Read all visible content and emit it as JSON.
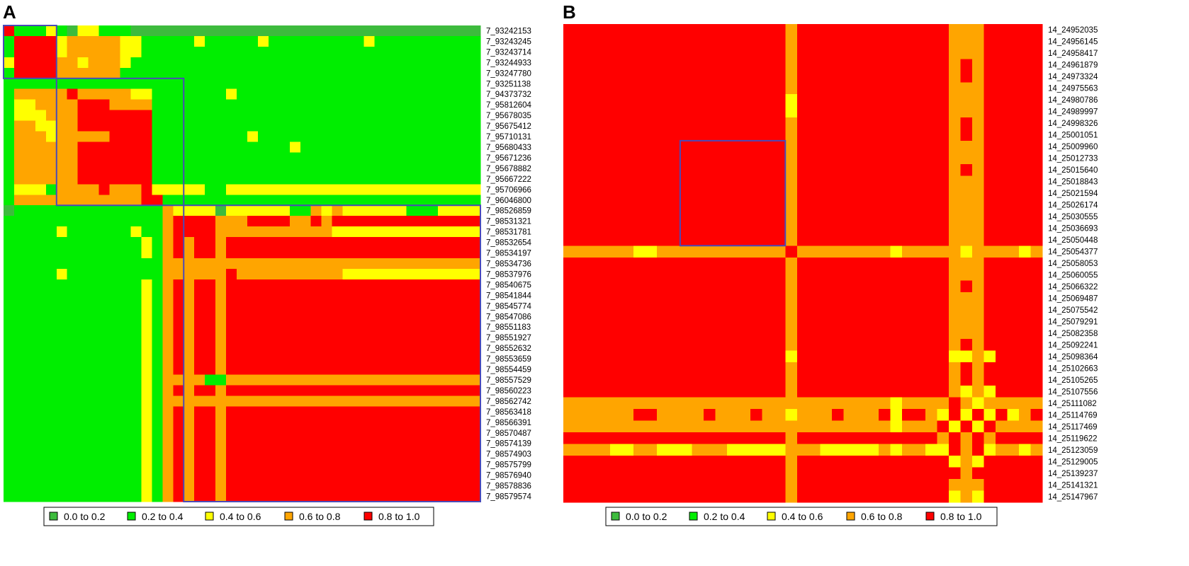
{
  "colors": {
    "0.0 to 0.2": "#3dbb3d",
    "0.2 to 0.4": "#00ee00",
    "0.4 to 0.6": "#ffff00",
    "0.6 to 0.8": "#ffa500",
    "0.8 to 1.0": "#ff0000",
    "block_outline": "#4a4ab8"
  },
  "legend": [
    {
      "label": "0.0 to 0.2",
      "color": "#3dbb3d"
    },
    {
      "label": "0.2 to 0.4",
      "color": "#00ee00"
    },
    {
      "label": "0.4 to 0.6",
      "color": "#ffff00"
    },
    {
      "label": "0.6 to 0.8",
      "color": "#ffa500"
    },
    {
      "label": "0.8 to 1.0",
      "color": "#ff0000"
    }
  ],
  "chart_data": [
    {
      "type": "heatmap",
      "panel": "A",
      "bins": [
        "0.0 to 0.2",
        "0.2 to 0.4",
        "0.4 to 0.6",
        "0.6 to 0.8",
        "0.8 to 1.0"
      ],
      "rows": [
        "7_93242153",
        "7_93243245",
        "7_93243714",
        "7_93244933",
        "7_93247780",
        "7_93251138",
        "7_94373732",
        "7_95812604",
        "7_95678035",
        "7_95675412",
        "7_95710131",
        "7_95680433",
        "7_95671236",
        "7_95678882",
        "7_95667222",
        "7_95706966",
        "7_96046800",
        "7_98526859",
        "7_98531321",
        "7_98531781",
        "7_98532654",
        "7_98534197",
        "7_98534736",
        "7_98537976",
        "7_98540675",
        "7_98541844",
        "7_98545774",
        "7_98547086",
        "7_98551183",
        "7_98551927",
        "7_98552632",
        "7_98553659",
        "7_98554459",
        "7_98557529",
        "7_98560223",
        "7_98562742",
        "7_98563418",
        "7_98566391",
        "7_98570487",
        "7_98574139",
        "7_98574903",
        "7_98575799",
        "7_98576940",
        "7_98578836",
        "7_98579574"
      ],
      "blocks": [
        {
          "from": "7_93242153",
          "to": "7_93247780"
        },
        {
          "from": "7_93251138",
          "to": "7_96046800"
        },
        {
          "from": "7_98526859",
          "to": "7_98579574"
        }
      ],
      "matrix_rows": [
        "RBBBCBACCBBBAAAAAAAAAAAAAAAAAAAAAAAAAAAAAAAAA",
        "BRRRRCDDDDDCCBBBBBCBBBBBCBBBBBBBBBCBBBBBBBBBB",
        "BRRRRCDDDDDCCBBBBBBBBBBBBBBBBBBBBBBBBBBBBBBBB",
        "CRRRRDDCDDDCBBBBBBBBBBBBBBBBBBBBBBBBBBBBBBBBB",
        "BRRRRDDDDDDBBBBBBBBBBBBBBBBBBBBBBBBBBBBBBBBBB",
        "BBBBBBBBBBBBBBBBBBBBBBBBBBBBBBBBBBBBBBBBBBBBB",
        "BDDDDDRDDDDDCCBBBBBBBCBBBBBBBBBBBBBBBBBBBBBBB",
        "BCCDDDDRRRDDDDBBBBBBBBBBBBBBBBBBBBBBBBBBBBBBB",
        "BCCCDDDRRRRRRRBBBBBBBBBBBBBBBBBBBBBBBBBBBBBBB",
        "BDDCCDDRRRRRRRBBBBBBBBBBBBBBBBBBBBBBBBBBBBBBB",
        "BDDDCDDDDDRRRRBBBBBBBBBCBBBBBBBBBBBBBBBBBBBBB",
        "BDDDDDDRRRRRRRBBBBBBBBBBBBBCBBBBBBBBBBBBBBBBB",
        "BDDDDDDRRRRRRRBBBBBBBBBBBBBBBBBBBBBBBBBBBBBBB",
        "BDDDDDDRRRRRRRBBBBBBBBBBBBBBBBBBBBBBBBBBBBBBB",
        "BDDDDDDRRRRRRRBBBBBBBBBBBBBBBBBBBBBBBBBBBBBBB",
        "BCCCBDDDDRDDDRCCCCCBBCCCCCCCCCCCCCCCCCCCCCCCC",
        "BDDDDDDDDDDDDRRBBBBBBBBBBBBBBBBBBBBBBBBBBBBBB",
        "ABBBBBBBBBBBBBBDCCCCACCCCCCBBDCDCCCCCCBBBCCCC",
        "BBBBBBBBBBBBBBBDRRRRDDDRRRRDDRDRRRRRRRRRRRRRR",
        "BBBBBCBBBBBBCBBDRRRRDDDDDDDDDDDCCCCCCCCCCCCCC",
        "BBBBBBBBBBBBBCBDRDRRDRRRRRRRRRRRRRRRRRRRRRRRR",
        "BBBBBBBBBBBBBCBDRDRRDRRRRRRRRRRRRRRRRRRRRRRRR",
        "BBBBBBBBBBBBBBBDDDDDDDDDDDDDDDDDDDDDDDDDDDDDD",
        "BBBBBCBBBBBBBBBDDDDDDRDDDDDDDDDDCCCCCCCCCCCCC",
        "BBBBBBBBBBBBBCBDRDRRDRRRRRRRRRRRRRRRRRRRRRRRR",
        "BBBBBBBBBBBBBCBDRDRRDRRRRRRRRRRRRRRRRRRRRRRRR",
        "BBBBBBBBBBBBBCBDRDRRDRRRRRRRRRRRRRRRRRRRRRRRR",
        "BBBBBBBBBBBBBCBDRDRRDRRRRRRRRRRRRRRRRRRRRRRRR",
        "BBBBBBBBBBBBBCBDRDRRDRRRRRRRRRRRRRRRRRRRRRRRR",
        "BBBBBBBBBBBBBCBDRDRRDRRRRRRRRRRRRRRRRRRRRRRRR",
        "BBBBBBBBBBBBBCBDRDRRDRRRRRRRRRRRRRRRRRRRRRRRR",
        "BBBBBBBBBBBBBCBDRDRRDRRRRRRRRRRRRRRRRRRRRRRRR",
        "BBBBBBBBBBBBBCBDRDRRDRRRRRRRRRRRRRRRRRRRRRRRR",
        "BBBBBBBBBBBBBCBDDDDBBDDDDDDDDDDDDDDDDDDDDDDDD",
        "BBBBBBBBBBBBBCBDRDRRDRRRRRRRRRRRRRRRRRRRRRRRR",
        "BBBBBBBBBBBBBCBDDDDDDDDDDDDDDDDDDDDDDDDDDDDDD",
        "BBBBBBBBBBBBBCBDRDRRDRRRRRRRRRRRRRRRRRRRRRRRR",
        "BBBBBBBBBBBBBCBDRDRRDRRRRRRRRRRRRRRRRRRRRRRRR",
        "BBBBBBBBBBBBBCBDRDRRDRRRRRRRRRRRRRRRRRRRRRRRR",
        "BBBBBBBBBBBBBCBDRDRRDRRRRRRRRRRRRRRRRRRRRRRRR",
        "BBBBBBBBBBBBBCBDRDRRDRRRRRRRRRRRRRRRRRRRRRRRR",
        "BBBBBBBBBBBBBCBDRDRRDRRRRRRRRRRRRRRRRRRRRRRRR",
        "BBBBBBBBBBBBBCBDRDRRDRRRRRRRRRRRRRRRRRRRRRRRR",
        "BBBBBBBBBBBBBCBDRDRRDRRRRRRRRRRRRRRRRRRRRRRRR",
        "BBBBBBBBBBBBBCBDRDRRDRRRRRRRRRRRRRRRRRRRRRRRR"
      ]
    },
    {
      "type": "heatmap",
      "panel": "B",
      "bins": [
        "0.0 to 0.2",
        "0.2 to 0.4",
        "0.4 to 0.6",
        "0.6 to 0.8",
        "0.8 to 1.0"
      ],
      "rows": [
        "14_24952035",
        "14_24956145",
        "14_24958417",
        "14_24961879",
        "14_24973324",
        "14_24975563",
        "14_24980786",
        "14_24989997",
        "14_24998326",
        "14_25001051",
        "14_25009960",
        "14_25012733",
        "14_25015640",
        "14_25018843",
        "14_25021594",
        "14_25026174",
        "14_25030555",
        "14_25036693",
        "14_25050448",
        "14_25054377",
        "14_25058053",
        "14_25060055",
        "14_25066322",
        "14_25069487",
        "14_25075542",
        "14_25079291",
        "14_25082358",
        "14_25092241",
        "14_25098364",
        "14_25102663",
        "14_25105265",
        "14_25107556",
        "14_25111082",
        "14_25114769",
        "14_25117469",
        "14_25119622",
        "14_25123059",
        "14_25129005",
        "14_25139237",
        "14_25141321",
        "14_25147967"
      ],
      "blocks": [
        {
          "from": "14_25009960",
          "to": "14_25050448"
        }
      ],
      "matrix_rows": [
        "RRRRRRRRRRRRRRRRRRRDRRRRRRRRRRRRRDDDRRRRR",
        "RRRRRRRRRRRRRRRRRRRDRRRRRRRRRRRRRDDDRRRRR",
        "RRRRRRRRRRRRRRRRRRRDRRRRRRRRRRRRRDDDRRRRR",
        "RRRRRRRRRRRRRRRRRRRDRRRRRRRRRRRRRDRDRRRRR",
        "RRRRRRRRRRRRRRRRRRRDRRRRRRRRRRRRRDRDRRRRR",
        "RRRRRRRRRRRRRRRRRRRDRRRRRRRRRRRRRDDDRRRRR",
        "RRRRRRRRRRRRRRRRRRRCRRRRRRRRRRRRRDDDRRRRR",
        "RRRRRRRRRRRRRRRRRRRCRRRRRRRRRRRRRDDDRRRRR",
        "RRRRRRRRRRRRRRRRRRRDRRRRRRRRRRRRRDRDRRRRR",
        "RRRRRRRRRRRRRRRRRRRDRRRRRRRRRRRRRDRDRRRRR",
        "RRRRRRRRRRRRRRRRRRRDRRRRRRRRRRRRRDDDRRRRR",
        "RRRRRRRRRRRRRRRRRRRDRRRRRRRRRRRRRDDDRRRRR",
        "RRRRRRRRRRRRRRRRRRRDRRRRRRRRRRRRRDRDRRRRR",
        "RRRRRRRRRRRRRRRRRRRDRRRRRRRRRRRRRDDDRRRRR",
        "RRRRRRRRRRRRRRRRRRRDRRRRRRRRRRRRRDDDRRRRR",
        "RRRRRRRRRRRRRRRRRRRDRRRRRRRRRRRRRDDDRRRRR",
        "RRRRRRRRRRRRRRRRRRRDRRRRRRRRRRRRRDDDRRRRR",
        "RRRRRRRRRRRRRRRRRRRDRRRRRRRRRRRRRDDDRRRRR",
        "RRRRRRRRRRRRRRRRRRRDRRRRRRRRRRRRRDDDRRRRR",
        "DDDDDDCCDDDDDDDDDDDRDDDDDDDDCDDDDDCDDDDCD",
        "RRRRRRRRRRRRRRRRRRRDRRRRRRRRRRRRRDDDRRRRR",
        "RRRRRRRRRRRRRRRRRRRDRRRRRRRRRRRRRDDDRRRRR",
        "RRRRRRRRRRRRRRRRRRRDRRRRRRRRRRRRRDRDRRRRR",
        "RRRRRRRRRRRRRRRRRRRDRRRRRRRRRRRRRDDDRRRRR",
        "RRRRRRRRRRRRRRRRRRRDRRRRRRRRRRRRRDDDRRRRR",
        "RRRRRRRRRRRRRRRRRRRDRRRRRRRRRRRRRDDDRRRRR",
        "RRRRRRRRRRRRRRRRRRRDRRRRRRRRRRRRRDDDRRRRR",
        "RRRRRRRRRRRRRRRRRRRDRRRRRRRRRRRRRDRDRRRRR",
        "RRRRRRRRRRRRRRRRRRRCRRRRRRRRRRRRRCCDCRRRR",
        "RRRRRRRRRRRRRRRRRRRDRRRRRRRRRRRRRDRDRRRRR",
        "RRRRRRRRRRRRRRRRRRRDRRRRRRRRRRRRRDRDRRRRR",
        "RRRRRRRRRRRRRRRRRRRDRRRRRRRRRRRRRDCDCRRRR",
        "DDDDDDDDDDDDDDDDDDDDDDDDDDDDCDDDDRDCDDDDD",
        "DDDDDDRRDDDDRDDDRDDCDDDRDDDRCRRDCRCRCRCDR",
        "DDDDDDDDDDDDDDDDDDDDDDDDDDDDCDDDRCRCRDDDD",
        "RRRRRRRRRRRRRRRRRRRDRRRRRRRRRRRRDRDRDRRRR",
        "DDDDCCDDCCCDDDCCCCCDDDCCCCCDCDDCCRDRCDDCD",
        "RRRRRRRRRRRRRRRRRRRDRRRRRRRRRRRRRCDCRRRRR",
        "RRRRRRRRRRRRRRRRRRRDRRRRRRRRRRRRRRDRRRRRR",
        "RRRRRRRRRRRRRRRRRRRDRRRRRRRRRRRRRDDDRRRRR",
        "RRRRRRRRRRRRRRRRRRRDRRRRRRRRRRRRRCDCRRRRR"
      ]
    }
  ]
}
